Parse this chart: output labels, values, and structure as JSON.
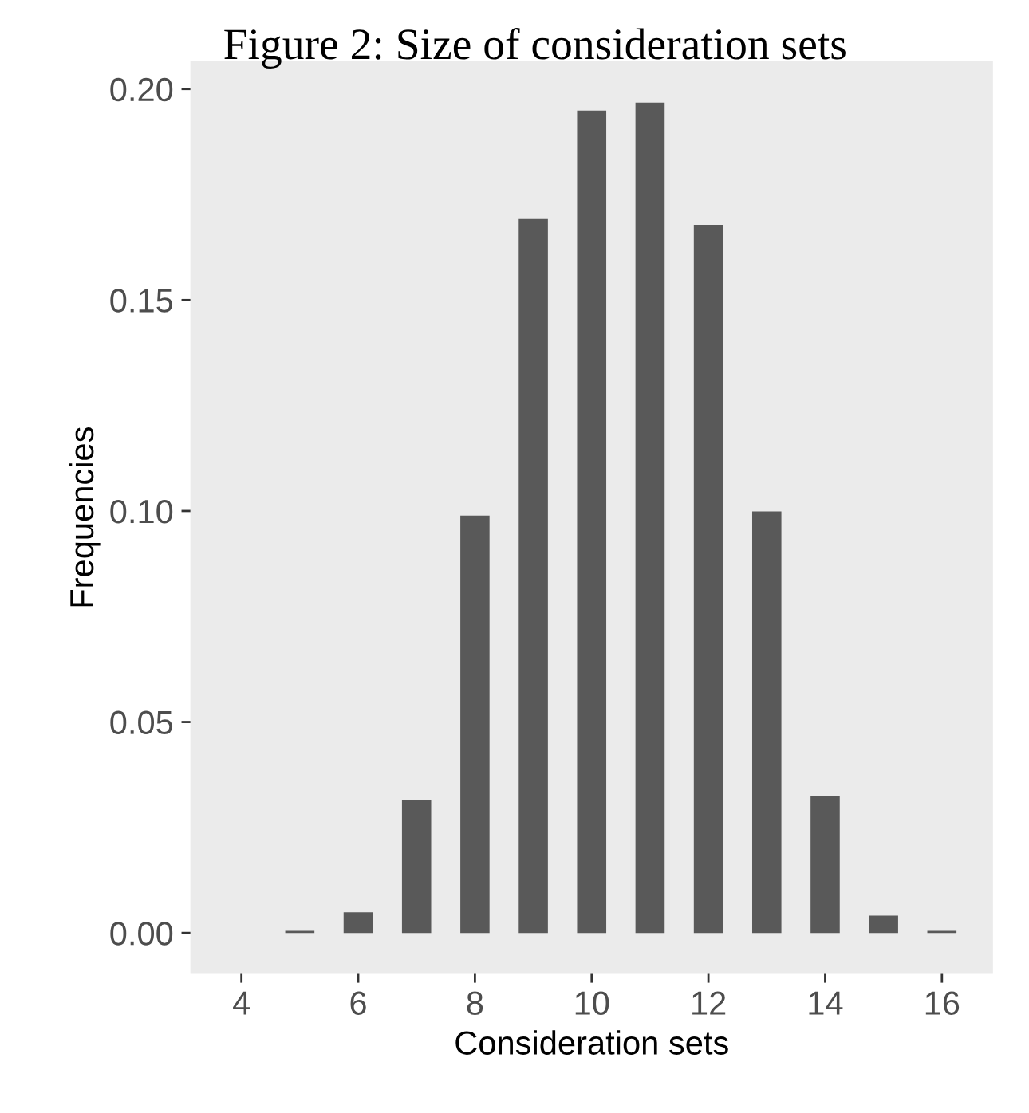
{
  "chart_data": {
    "type": "histogram",
    "title": "Figure 2: Size of consideration sets",
    "xlabel": "Consideration sets",
    "ylabel": "Frequencies",
    "bins": [
      3.75,
      4.25,
      4.75,
      5.25,
      5.75,
      6.25,
      6.75,
      7.25,
      7.75,
      8.25,
      8.75,
      9.25,
      9.75,
      10.25,
      10.75,
      11.25,
      11.75,
      12.25,
      12.75,
      13.25,
      13.75,
      14.25,
      14.75,
      15.25,
      15.75,
      16.25
    ],
    "values": [
      0,
      0,
      0.0005,
      0,
      0.0049,
      0,
      0.0316,
      0,
      0.0989,
      0,
      0.1692,
      0,
      0.1949,
      0,
      0.1968,
      0,
      0.1678,
      0,
      0.0999,
      0,
      0.0325,
      0,
      0.0041,
      0,
      0.0005
    ],
    "color": "#595959",
    "xlim": [
      3.125,
      16.875
    ],
    "xticks": [
      4,
      6,
      8,
      10,
      12,
      14,
      16
    ],
    "ylim": [
      -0.0097,
      0.2066
    ],
    "yticks": [
      {
        "value": 0,
        "label": "0.00"
      },
      {
        "value": 0.05,
        "label": "0.05"
      },
      {
        "value": 0.1,
        "label": "0.10"
      },
      {
        "value": 0.15,
        "label": "0.15"
      },
      {
        "value": 0.2,
        "label": "0.20"
      }
    ],
    "grid": false,
    "legend": false
  }
}
